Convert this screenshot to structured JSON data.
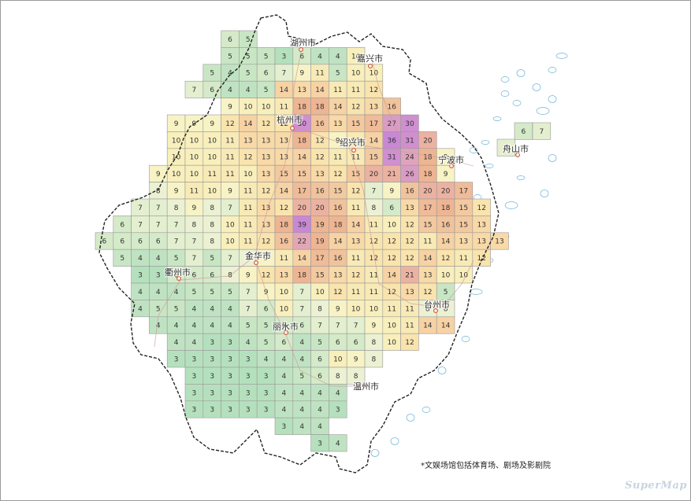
{
  "footnote": "*文娱场馆包括体育场、剧场及影剧院",
  "watermark": "SuperMap",
  "colors": {
    "c3": "#b5e0bd",
    "c4": "#bfe3c2",
    "c5": "#c8e6c4",
    "c6": "#d4eac8",
    "c7": "#e3efcf",
    "c8": "#ebf1d2",
    "c9": "#f7f3c5",
    "c10": "#f8efbc",
    "c11": "#f8eab6",
    "c12": "#f9e4ae",
    "c13": "#f8d9a8",
    "c14": "#f6d2a4",
    "c15": "#f3c9a0",
    "c16": "#f1c39c",
    "c17": "#efbb98",
    "c18": "#eeb592",
    "c20": "#ebb2a2",
    "c22": "#e2a7b7",
    "c24": "#dfa4bc",
    "c26": "#d99cc4",
    "c28": "#d497cb",
    "c30": "#cf8fd0",
    "c36": "#c888d4",
    "border": "#999999",
    "province_outline": "#222222",
    "road": "#cc9a9a",
    "water": "#6fb4d6",
    "city_marker": "#d25a3a"
  },
  "cities": [
    {
      "name": "湖州市"
    },
    {
      "name": "嘉兴市"
    },
    {
      "name": "杭州市"
    },
    {
      "name": "绍兴市"
    },
    {
      "name": "舟山市"
    },
    {
      "name": "宁波市"
    },
    {
      "name": "金华市"
    },
    {
      "name": "衢州市"
    },
    {
      "name": "丽水市"
    },
    {
      "name": "台州市"
    },
    {
      "name": "温州市"
    }
  ],
  "grid_rows": [
    {
      "row": 0,
      "start_col": 8,
      "values": [
        6,
        5
      ]
    },
    {
      "row": 1,
      "start_col": 8,
      "values": [
        5,
        5,
        5,
        3,
        6,
        4,
        4,
        10
      ]
    },
    {
      "row": 2,
      "start_col": 7,
      "values": [
        5,
        4,
        5,
        6,
        7,
        9,
        11,
        5,
        10,
        10
      ]
    },
    {
      "row": 3,
      "start_col": 6,
      "values": [
        7,
        6,
        4,
        4,
        5,
        14,
        13,
        14,
        11,
        11,
        12
      ]
    },
    {
      "row": 4,
      "start_col": 8,
      "values": [
        9,
        10,
        10,
        11,
        18,
        18,
        14,
        12,
        13,
        16
      ]
    },
    {
      "row": 5,
      "start_col": 5,
      "values": [
        9,
        9,
        9,
        12,
        14,
        12,
        12,
        30,
        16,
        13,
        15,
        17,
        27,
        30
      ]
    },
    {
      "row": 6,
      "start_col": 5,
      "values": [
        10,
        10,
        10,
        11,
        13,
        13,
        13,
        18,
        12,
        9,
        11,
        14,
        36,
        31,
        20
      ]
    },
    {
      "row": 7,
      "start_col": 5,
      "values": [
        10,
        10,
        10,
        11,
        12,
        13,
        13,
        14,
        12,
        11,
        11,
        15,
        31,
        24,
        18,
        9
      ]
    },
    {
      "row": 8,
      "start_col": 4,
      "values": [
        9,
        10,
        10,
        11,
        11,
        10,
        13,
        15,
        15,
        13,
        12,
        15,
        20,
        21,
        26,
        18,
        9
      ]
    },
    {
      "row": 9,
      "start_col": 4,
      "values": [
        8,
        9,
        11,
        10,
        9,
        11,
        12,
        14,
        17,
        16,
        15,
        12,
        7,
        9,
        16,
        20,
        20,
        17
      ]
    },
    {
      "row": 10,
      "start_col": 3,
      "values": [
        7,
        7,
        8,
        9,
        8,
        7,
        11,
        13,
        12,
        20,
        20,
        16,
        11,
        8,
        6,
        13,
        17,
        18,
        15,
        12
      ]
    },
    {
      "row": 11,
      "start_col": 2,
      "values": [
        6,
        7,
        7,
        7,
        8,
        8,
        10,
        11,
        13,
        18,
        39,
        19,
        18,
        14,
        11,
        10,
        12,
        15,
        16,
        15,
        13
      ]
    },
    {
      "row": 12,
      "start_col": 1,
      "values": [
        6,
        6,
        6,
        6,
        7,
        7,
        8,
        10,
        11,
        12,
        16,
        22,
        19,
        14,
        13,
        12,
        12,
        12,
        11,
        14,
        13,
        13,
        13
      ]
    },
    {
      "row": 13,
      "start_col": 2,
      "values": [
        5,
        4,
        4,
        5,
        7,
        5,
        7,
        8,
        9,
        11,
        14,
        17,
        16,
        11,
        12,
        12,
        12,
        14,
        12,
        11,
        12
      ]
    },
    {
      "row": 14,
      "start_col": 3,
      "values": [
        3,
        3,
        6,
        6,
        6,
        8,
        9,
        12,
        13,
        18,
        15,
        13,
        12,
        11,
        14,
        21,
        13,
        10,
        10
      ]
    },
    {
      "row": 15,
      "start_col": 3,
      "values": [
        4,
        4,
        4,
        5,
        5,
        5,
        7,
        9,
        10,
        7,
        10,
        12,
        11,
        11,
        12,
        13,
        12,
        5
      ]
    },
    {
      "row": 16,
      "start_col": 3,
      "values": [
        4,
        5,
        5,
        4,
        4,
        4,
        7,
        6,
        10,
        7,
        8,
        9,
        10,
        10,
        11,
        11,
        8,
        8
      ]
    },
    {
      "row": 17,
      "start_col": 4,
      "values": [
        4,
        4,
        4,
        4,
        4,
        5,
        5,
        6,
        6,
        7,
        7,
        7,
        9,
        10,
        11,
        14,
        14
      ]
    },
    {
      "row": 18,
      "start_col": 5,
      "values": [
        4,
        4,
        3,
        3,
        4,
        5,
        6,
        4,
        5,
        6,
        6,
        8,
        10,
        12
      ]
    },
    {
      "row": 19,
      "start_col": 5,
      "values": [
        3,
        3,
        3,
        3,
        3,
        4,
        4,
        4,
        6,
        10,
        9,
        8
      ]
    },
    {
      "row": 20,
      "start_col": 6,
      "values": [
        3,
        3,
        3,
        3,
        3,
        4,
        5,
        6,
        8,
        8
      ]
    },
    {
      "row": 21,
      "start_col": 6,
      "values": [
        3,
        3,
        3,
        3,
        3,
        4,
        4,
        4,
        4
      ]
    },
    {
      "row": 22,
      "start_col": 6,
      "values": [
        3,
        3,
        3,
        3,
        3,
        4,
        4,
        4,
        3
      ]
    },
    {
      "row": 23,
      "start_col": 11,
      "values": [
        3,
        4,
        4
      ]
    },
    {
      "row": 24,
      "start_col": 13,
      "values": [
        3,
        4
      ]
    }
  ],
  "zhoushan_cells": [
    6,
    7,
    7
  ]
}
